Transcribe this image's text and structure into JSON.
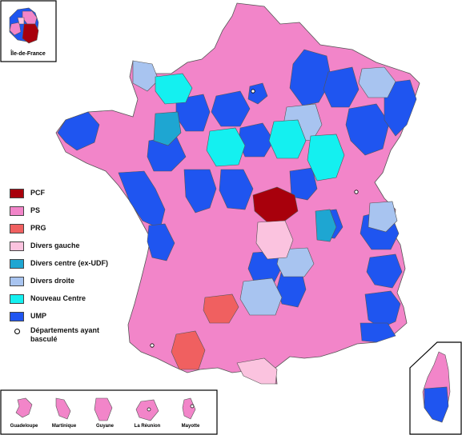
{
  "inset_idf": {
    "label": "Île-de-France"
  },
  "legend": {
    "items": [
      {
        "label": "PCF",
        "color": "#a8000c"
      },
      {
        "label": "PS",
        "color": "#f285c9"
      },
      {
        "label": "PRG",
        "color": "#f06060"
      },
      {
        "label": "Divers gauche",
        "color": "#fbc3df"
      },
      {
        "label": "Divers centre (ex-UDF)",
        "color": "#1ea6d2"
      },
      {
        "label": "Divers droite",
        "color": "#a8c4f0"
      },
      {
        "label": "Nouveau Centre",
        "color": "#14f0f0"
      },
      {
        "label": "UMP",
        "color": "#1f55f0"
      }
    ],
    "marker_label": "Départements ayant basculé"
  },
  "overseas": [
    {
      "label": "Guadeloupe",
      "color": "#f285c9"
    },
    {
      "label": "Martinique",
      "color": "#f285c9"
    },
    {
      "label": "Guyane",
      "color": "#f285c9"
    },
    {
      "label": "La Réunion",
      "color": "#f285c9"
    },
    {
      "label": "Mayotte",
      "color": "#f285c9"
    }
  ],
  "colors": {
    "border": "#555555",
    "pcf": "#a8000c",
    "ps": "#f285c9",
    "prg": "#f06060",
    "dvg": "#fbc3df",
    "dvc": "#1ea6d2",
    "dvd": "#a8c4f0",
    "nc": "#14f0f0",
    "ump": "#1f55f0"
  }
}
